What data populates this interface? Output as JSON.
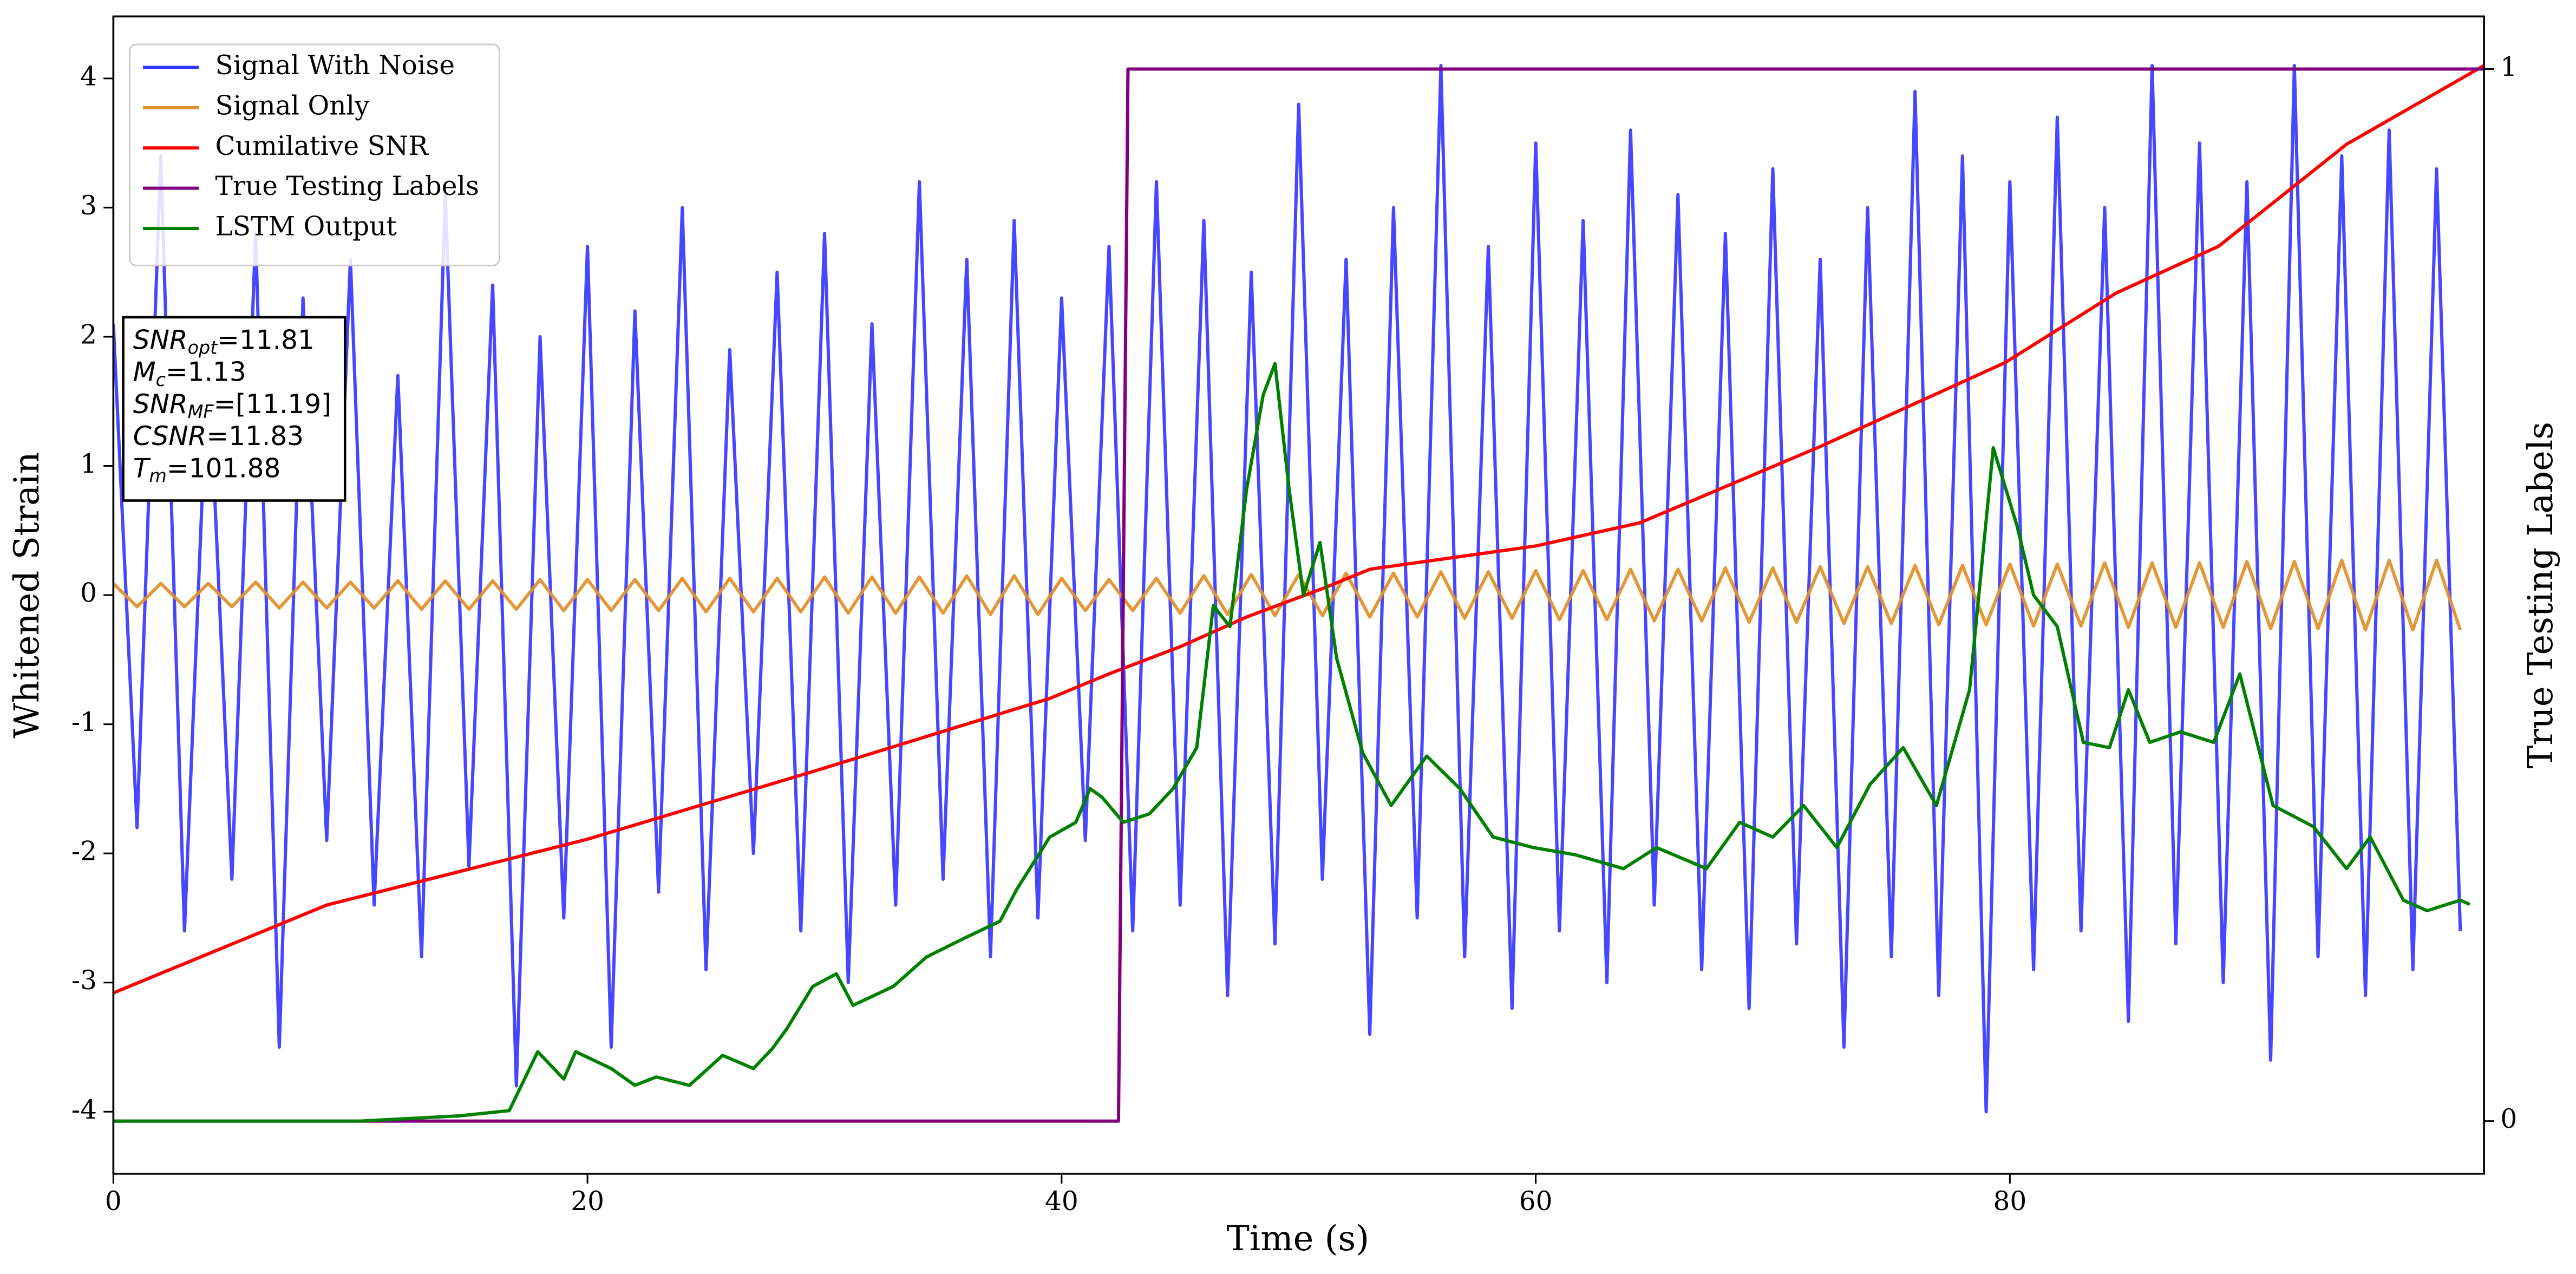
{
  "chart_data": {
    "type": "line",
    "xlabel": "Time (s)",
    "ylabel": "Whitened Strain",
    "y2label": "True Testing Labels",
    "xlim": [
      0,
      100
    ],
    "ylim": [
      -4.48,
      4.48
    ],
    "y2lim": [
      -0.05,
      1.05
    ],
    "xticks": [
      0,
      20,
      40,
      60,
      80
    ],
    "yticks": [
      -4,
      -3,
      -2,
      -1,
      0,
      1,
      2,
      3,
      4
    ],
    "y2ticks": [
      0,
      1
    ],
    "legend": "upper left",
    "x": [
      0,
      1,
      2,
      3,
      4,
      5,
      6,
      7,
      8,
      9,
      10,
      11,
      12,
      13,
      14,
      15,
      16,
      17,
      18,
      19,
      20,
      21,
      22,
      23,
      24,
      25,
      26,
      27,
      28,
      29,
      30,
      31,
      32,
      33,
      34,
      35,
      36,
      37,
      38,
      39,
      40,
      41,
      42,
      43,
      44,
      45,
      46,
      47,
      48,
      49,
      50,
      51,
      52,
      53,
      54,
      55,
      56,
      57,
      58,
      59,
      60,
      61,
      62,
      63,
      64,
      65,
      66,
      67,
      68,
      69,
      70,
      71,
      72,
      73,
      74,
      75,
      76,
      77,
      78,
      79,
      80,
      81,
      82,
      83,
      84,
      85,
      86,
      87,
      88,
      89,
      90,
      91,
      92,
      93,
      94,
      95,
      96,
      97,
      98,
      99
    ],
    "series": [
      {
        "name": "Signal With Noise",
        "color": "#3333ff",
        "values": [
          2.1,
          -1.8,
          3.4,
          -2.6,
          1.9,
          -2.2,
          2.8,
          -3.5,
          2.3,
          -1.9,
          2.6,
          -2.4,
          1.7,
          -2.8,
          3.1,
          -2.1,
          2.4,
          -3.8,
          2.0,
          -2.5,
          2.7,
          -3.5,
          2.2,
          -2.3,
          3.0,
          -2.9,
          1.9,
          -2.0,
          2.5,
          -2.6,
          2.8,
          -3.0,
          2.1,
          -2.4,
          3.2,
          -2.2,
          2.6,
          -2.8,
          2.9,
          -2.5,
          2.3,
          -1.9,
          2.7,
          -2.6,
          3.2,
          -2.4,
          2.9,
          -3.1,
          2.5,
          -2.7,
          3.8,
          -2.2,
          2.6,
          -3.4,
          3.0,
          -2.5,
          4.1,
          -2.8,
          2.7,
          -3.2,
          3.5,
          -2.6,
          2.9,
          -3.0,
          3.6,
          -2.4,
          3.1,
          -2.9,
          2.8,
          -3.2,
          3.3,
          -2.7,
          2.6,
          -3.5,
          3.0,
          -2.8,
          3.9,
          -3.1,
          3.4,
          -4.0,
          3.2,
          -2.9,
          3.7,
          -2.6,
          3.0,
          -3.3,
          4.1,
          -2.7,
          3.5,
          -3.0,
          3.2,
          -3.6,
          4.1,
          -2.8,
          3.4,
          -3.1,
          3.6,
          -2.9,
          3.3,
          -2.6
        ]
      },
      {
        "name": "Signal Only",
        "color": "#e0922e",
        "values": [
          0.09,
          -0.09,
          0.09,
          -0.09,
          0.09,
          -0.09,
          0.1,
          -0.1,
          0.1,
          -0.1,
          0.1,
          -0.1,
          0.11,
          -0.11,
          0.11,
          -0.11,
          0.11,
          -0.11,
          0.12,
          -0.12,
          0.12,
          -0.12,
          0.12,
          -0.12,
          0.13,
          -0.13,
          0.13,
          -0.13,
          0.13,
          -0.13,
          0.14,
          -0.14,
          0.14,
          -0.14,
          0.14,
          -0.14,
          0.15,
          -0.15,
          0.15,
          -0.15,
          0.13,
          -0.12,
          0.12,
          -0.12,
          0.13,
          -0.14,
          0.15,
          -0.15,
          0.16,
          -0.16,
          0.16,
          -0.16,
          0.17,
          -0.17,
          0.17,
          -0.17,
          0.18,
          -0.18,
          0.18,
          -0.18,
          0.19,
          -0.19,
          0.19,
          -0.19,
          0.2,
          -0.2,
          0.2,
          -0.2,
          0.21,
          -0.21,
          0.21,
          -0.21,
          0.22,
          -0.22,
          0.22,
          -0.22,
          0.23,
          -0.23,
          0.23,
          -0.23,
          0.24,
          -0.24,
          0.24,
          -0.24,
          0.25,
          -0.25,
          0.25,
          -0.25,
          0.25,
          -0.25,
          0.26,
          -0.26,
          0.26,
          -0.26,
          0.27,
          -0.27,
          0.27,
          -0.27,
          0.27,
          -0.27
        ]
      },
      {
        "name": "Cumilative SNR",
        "color": "#ff0000",
        "x": [
          0,
          9,
          20,
          29.8,
          39.5,
          42,
          45,
          47.8,
          51,
          53,
          60,
          64.4,
          72,
          79.8,
          84.5,
          88.8,
          94.2,
          100
        ],
        "values": [
          -3.08,
          -2.4,
          -1.89,
          -1.35,
          -0.8,
          -0.61,
          -0.4,
          -0.17,
          0.05,
          0.2,
          0.38,
          0.56,
          1.15,
          1.8,
          2.34,
          2.7,
          3.49,
          4.1
        ]
      },
      {
        "name": "True Testing Labels",
        "color": "#800080",
        "axis": "y2",
        "x": [
          0,
          42.4,
          42.8,
          100
        ],
        "values": [
          0,
          0,
          1,
          1
        ]
      },
      {
        "name": "LSTM Output",
        "color": "#008000",
        "axis": "y2",
        "x": [
          0,
          10.4,
          14.6,
          16.7,
          17.9,
          19,
          19.5,
          21,
          22,
          22.9,
          24.3,
          25.7,
          27,
          27.8,
          28.4,
          29.5,
          30.5,
          31.2,
          32.9,
          34.3,
          36,
          37.4,
          38.1,
          39.5,
          40.6,
          41.2,
          41.7,
          42.6,
          43.7,
          44.7,
          45.7,
          46.4,
          47.1,
          47.8,
          48.5,
          49,
          49.6,
          50.2,
          50.9,
          51.6,
          52.7,
          53.9,
          55.4,
          56.8,
          58.2,
          59.9,
          61.7,
          63.7,
          65.1,
          67.2,
          68.6,
          70,
          71.3,
          72.7,
          74.1,
          75.5,
          76.9,
          78.3,
          79.3,
          80.3,
          81,
          82,
          83.1,
          84.2,
          85,
          85.9,
          87.2,
          88.6,
          89.7,
          91.1,
          92.8,
          94.2,
          95.2,
          96.6,
          97.6,
          99,
          99.4
        ],
        "values": [
          0,
          0,
          0.005,
          0.01,
          0.066,
          0.04,
          0.066,
          0.05,
          0.034,
          0.042,
          0.034,
          0.0625,
          0.05,
          0.069,
          0.0875,
          0.128,
          0.14,
          0.11,
          0.128,
          0.156,
          0.175,
          0.19,
          0.22,
          0.27,
          0.284,
          0.316,
          0.308,
          0.284,
          0.292,
          0.316,
          0.355,
          0.49,
          0.47,
          0.6,
          0.69,
          0.72,
          0.6,
          0.5,
          0.55,
          0.44,
          0.35,
          0.3,
          0.347,
          0.316,
          0.27,
          0.26,
          0.253,
          0.24,
          0.26,
          0.24,
          0.284,
          0.27,
          0.3,
          0.26,
          0.32,
          0.355,
          0.3,
          0.41,
          0.64,
          0.566,
          0.5,
          0.47,
          0.36,
          0.355,
          0.41,
          0.36,
          0.37,
          0.36,
          0.425,
          0.3,
          0.28,
          0.24,
          0.27,
          0.21,
          0.2,
          0.21,
          0.206
        ]
      }
    ],
    "annotation_box": [
      {
        "symbol": "SNR",
        "sub": "opt",
        "text": "=11.81"
      },
      {
        "symbol": "M",
        "sub": "c",
        "text": "=1.13"
      },
      {
        "symbol": "SNR",
        "sub": "MF",
        "text": "=[11.19]"
      },
      {
        "symbol": "CSNR",
        "sub": "",
        "text": "=11.83"
      },
      {
        "symbol": "T",
        "sub": "m",
        "text": "=101.88"
      }
    ]
  }
}
